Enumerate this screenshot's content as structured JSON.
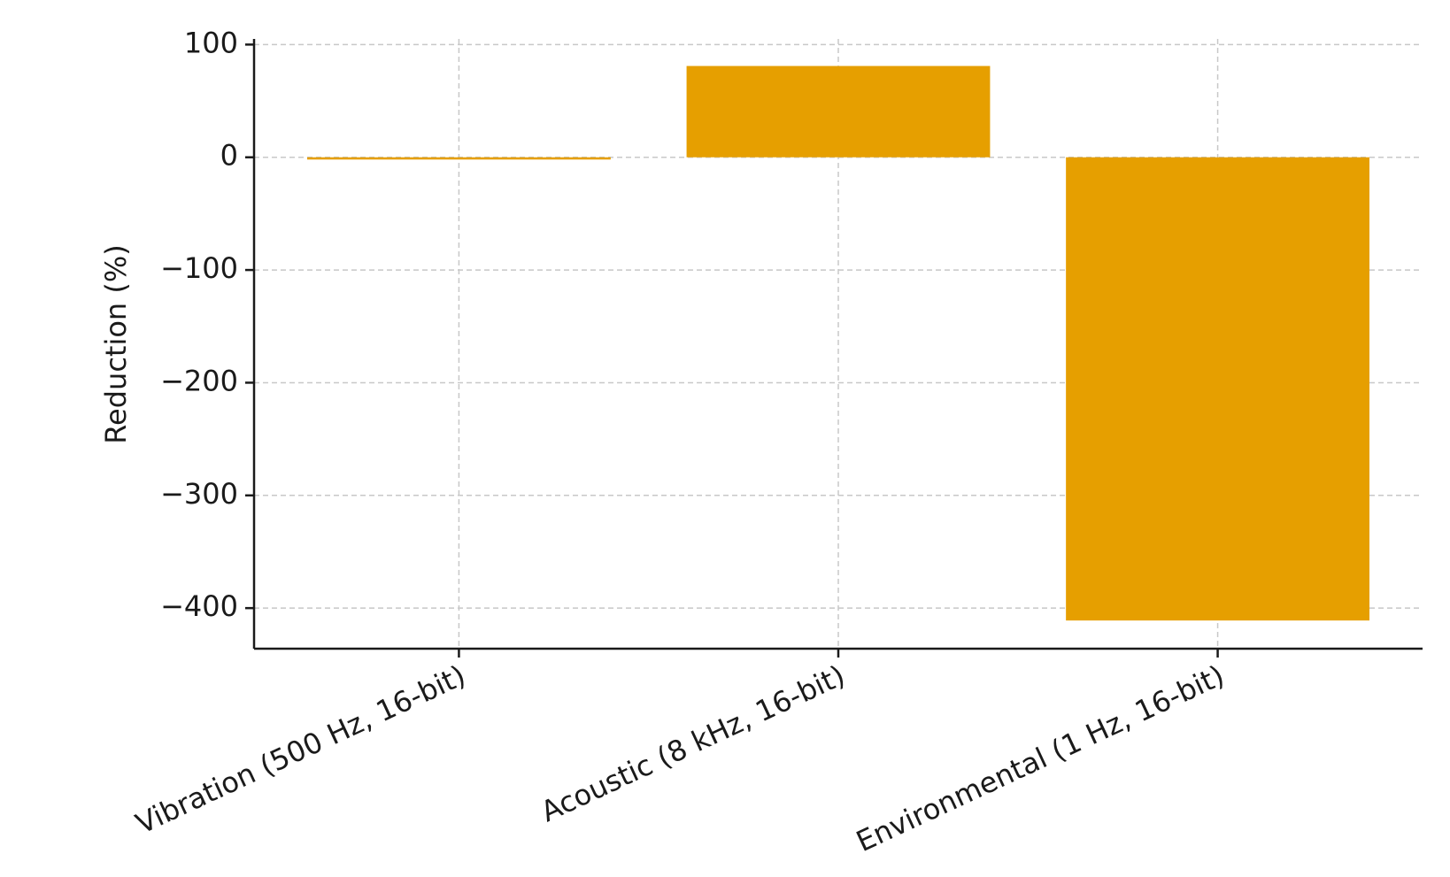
{
  "chart_data": {
    "type": "bar",
    "y_label": "Reduction (%)",
    "categories": [
      "Vibration (500 Hz, 16-bit)",
      "Acoustic (8 kHz, 16-bit)",
      "Environmental (1 Hz, 16-bit)"
    ],
    "values": [
      -2,
      81,
      -411
    ],
    "color": "#e69f00",
    "ylim": [
      -436,
      105
    ],
    "yticks": [
      100,
      0,
      {
        "value": -100,
        "label": "−100"
      },
      {
        "value": -200,
        "label": "−200"
      },
      {
        "value": -300,
        "label": "−300"
      },
      {
        "value": -400,
        "label": "−400"
      }
    ],
    "grid": true
  }
}
